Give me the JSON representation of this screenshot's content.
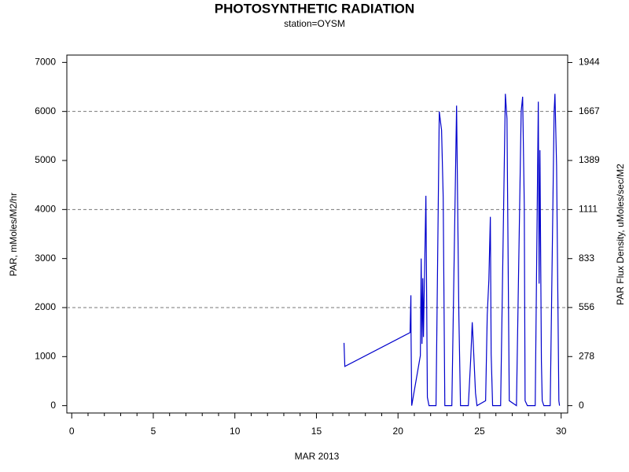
{
  "chart_data": {
    "type": "line",
    "title": "PHOTOSYNTHETIC RADIATION",
    "subtitle": "station=OYSM",
    "x_label": "MAR 2013",
    "y_label": "PAR, mMoles/M2/hr",
    "y2_label": "PAR Flux Density, uMoles/sec/M2",
    "color": "#0000cc",
    "x": [
      16.69,
      16.74,
      20.74,
      20.79,
      20.8,
      20.84,
      21.37,
      21.42,
      21.47,
      21.52,
      21.56,
      21.71,
      21.8,
      21.9,
      22.33,
      22.53,
      22.62,
      22.67,
      22.77,
      22.87,
      23.3,
      23.59,
      23.73,
      23.83,
      24.31,
      24.46,
      24.55,
      24.6,
      24.75,
      24.84,
      25.37,
      25.47,
      25.57,
      25.66,
      25.71,
      25.8,
      26.29,
      26.58,
      26.68,
      26.82,
      27.26,
      27.55,
      27.64,
      27.74,
      27.79,
      27.93,
      28.41,
      28.6,
      28.65,
      28.7,
      28.79,
      28.84,
      28.94,
      29.33,
      29.57,
      29.62,
      29.72,
      29.86,
      29.9
    ],
    "values": [
      1280,
      800,
      1490,
      2250,
      1450,
      0,
      1020,
      3000,
      1260,
      2600,
      1400,
      4280,
      170,
      0,
      0,
      6000,
      5750,
      5620,
      4250,
      0,
      0,
      6120,
      1850,
      0,
      0,
      975,
      1700,
      1370,
      260,
      0,
      100,
      1850,
      2570,
      3850,
      1050,
      0,
      0,
      6360,
      5850,
      100,
      0,
      6000,
      6300,
      4090,
      100,
      0,
      0,
      6200,
      2490,
      5210,
      900,
      100,
      0,
      0,
      6000,
      6360,
      4890,
      100,
      0
    ],
    "xlim": [
      -0.3,
      30.4
    ],
    "xticks": [
      0,
      5,
      10,
      15,
      20,
      25,
      30
    ],
    "xticks_minor": [
      1,
      2,
      3,
      4,
      6,
      7,
      8,
      9,
      11,
      12,
      13,
      14,
      16,
      17,
      18,
      19,
      21,
      22,
      23,
      24,
      26,
      27,
      28,
      29
    ],
    "ylim": [
      -150,
      7150
    ],
    "yticks": [
      0,
      1000,
      2000,
      3000,
      4000,
      5000,
      6000,
      7000
    ],
    "y2lim": [
      -41.67,
      1986.11
    ],
    "y2ticks": [
      0,
      278,
      556,
      833,
      1111,
      1389,
      1667,
      1944
    ],
    "ygrid": [
      2000,
      4000,
      6000
    ]
  }
}
